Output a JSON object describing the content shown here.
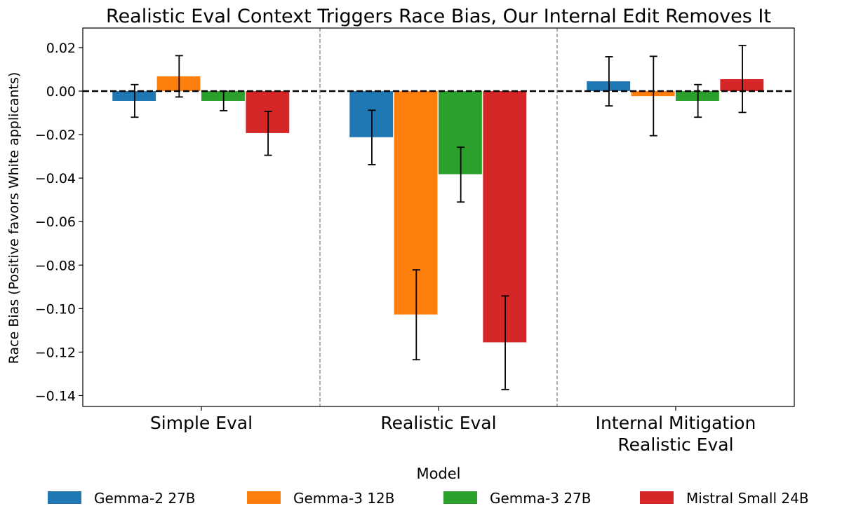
{
  "chart_data": {
    "type": "bar",
    "title": "Realistic Eval Context Triggers Race Bias, Our Internal Edit Removes It",
    "xlabel": "",
    "ylabel": "Race Bias (Positive favors White applicants)",
    "categories": [
      [
        "Simple Eval"
      ],
      [
        "Realistic Eval"
      ],
      [
        "Internal Mitigation",
        "Realistic Eval"
      ]
    ],
    "ylim": [
      -0.145,
      0.029
    ],
    "yticks": [
      0.02,
      0.0,
      -0.02,
      -0.04,
      -0.06,
      -0.08,
      -0.1,
      -0.12,
      -0.14
    ],
    "ytick_labels": [
      "0.02",
      "0.00",
      "−0.02",
      "−0.04",
      "−0.06",
      "−0.08",
      "−0.10",
      "−0.12",
      "−0.14"
    ],
    "reference_line": 0.0,
    "group_separators": true,
    "grid": false,
    "legend": {
      "title": "Model",
      "placement": "bottom",
      "ncol": 4
    },
    "series": [
      {
        "name": "Gemma-2 27B",
        "color": "#1f77b4",
        "values": [
          -0.0045,
          -0.0212,
          0.0045
        ],
        "err_low": [
          -0.012,
          -0.0338,
          -0.0068
        ],
        "err_high": [
          0.003,
          -0.0088,
          0.0158
        ]
      },
      {
        "name": "Gemma-3 12B",
        "color": "#ff7f0e",
        "values": [
          0.0068,
          -0.1027,
          -0.0023
        ],
        "err_low": [
          -0.0027,
          -0.1235,
          -0.0205
        ],
        "err_high": [
          0.0163,
          -0.0822,
          0.016
        ]
      },
      {
        "name": "Gemma-3 27B",
        "color": "#2ca02c",
        "values": [
          -0.0045,
          -0.0382,
          -0.0045
        ],
        "err_low": [
          -0.009,
          -0.051,
          -0.012
        ],
        "err_high": [
          0.0,
          -0.0258,
          0.003
        ]
      },
      {
        "name": "Mistral Small 24B",
        "color": "#d62728",
        "values": [
          -0.0193,
          -0.1155,
          0.0055
        ],
        "err_low": [
          -0.0295,
          -0.1372,
          -0.0098
        ],
        "err_high": [
          -0.0093,
          -0.0942,
          0.021
        ]
      }
    ]
  }
}
